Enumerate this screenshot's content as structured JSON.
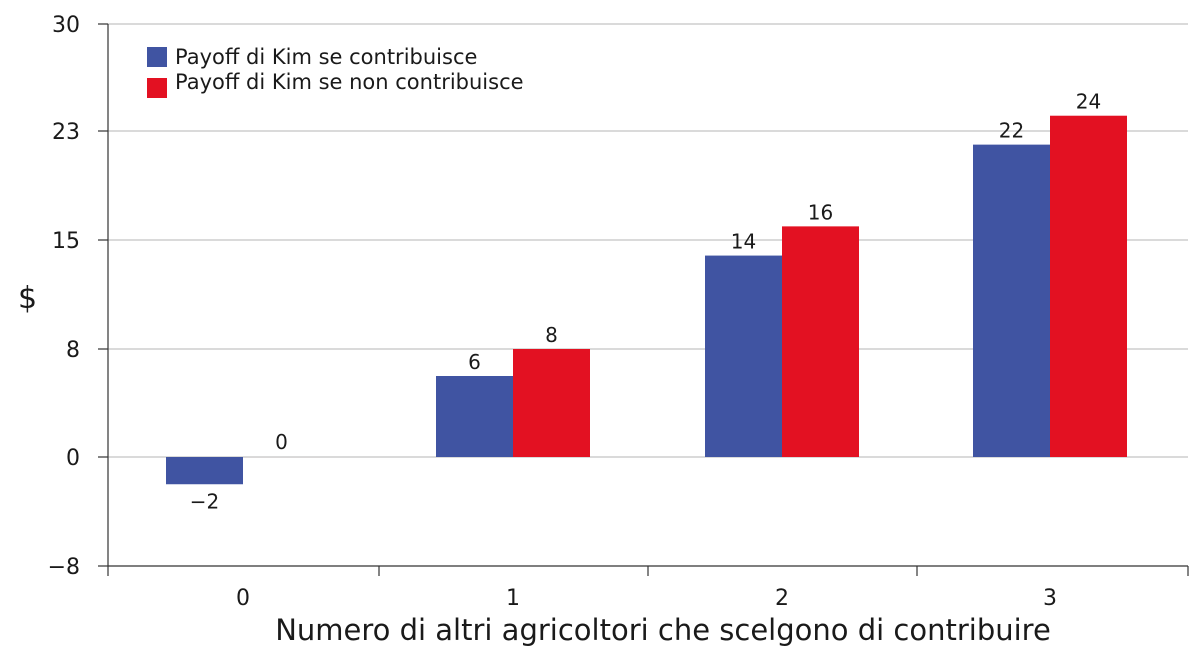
{
  "chart_data": {
    "type": "bar",
    "title": "",
    "xlabel": "Numero di altri agricoltori che scelgono di contribuire",
    "ylabel": "$",
    "categories": [
      "0",
      "1",
      "2",
      "3"
    ],
    "ylim": [
      -8,
      30
    ],
    "yticks": [
      -8,
      0,
      8,
      15,
      23,
      30
    ],
    "ytick_labels": [
      "−8",
      "0",
      "8",
      "15",
      "23",
      "30"
    ],
    "grid": true,
    "legend_position": "top-left",
    "series": [
      {
        "name": "Payoff di Kim se contribuisce",
        "color": "#4054a2",
        "values": [
          -2,
          6,
          14,
          22
        ],
        "labels": [
          "−2",
          "6",
          "14",
          "22"
        ]
      },
      {
        "name": "Payoff di Kim se non contribuisce",
        "color": "#e31122",
        "values": [
          0,
          8,
          16,
          24
        ],
        "labels": [
          "0",
          "8",
          "16",
          "24"
        ]
      }
    ]
  }
}
